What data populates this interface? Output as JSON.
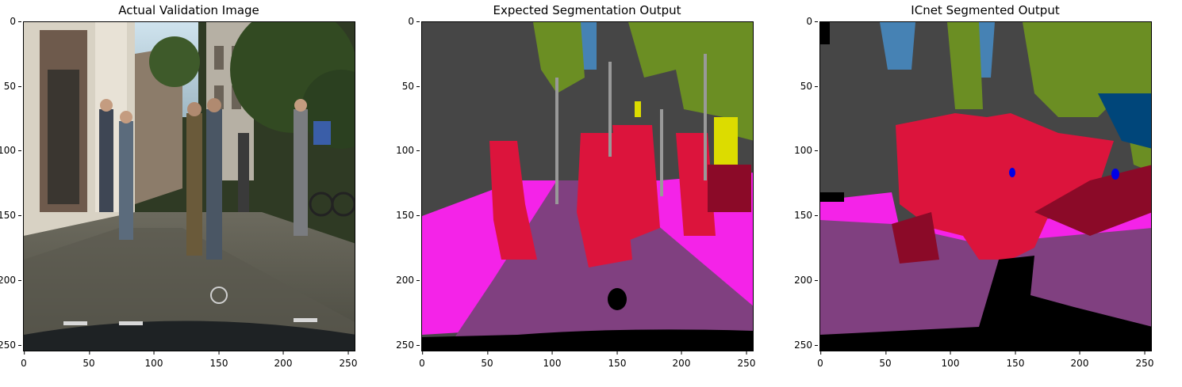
{
  "panels": [
    {
      "title": "Actual Validation Image",
      "yticks": [
        "0",
        "50",
        "100",
        "150",
        "200",
        "250"
      ],
      "xticks": [
        "0",
        "50",
        "100",
        "150",
        "200",
        "250"
      ]
    },
    {
      "title": "Expected Segmentation Output",
      "yticks": [
        "0",
        "50",
        "100",
        "150",
        "200",
        "250"
      ],
      "xticks": [
        "0",
        "50",
        "100",
        "150",
        "200",
        "250"
      ]
    },
    {
      "title": "ICnet Segmented Output",
      "yticks": [
        "0",
        "50",
        "100",
        "150",
        "200",
        "250"
      ],
      "xticks": [
        "0",
        "50",
        "100",
        "150",
        "200",
        "250"
      ]
    }
  ],
  "colors": {
    "road": "#804080",
    "sidewalk": "#f423e8",
    "building": "#464646",
    "vegetation": "#6b8e23",
    "sky": "#4682b4",
    "person": "#dc143c",
    "rider": "#8b0a28",
    "sign": "#dcdc00",
    "pole": "#999999",
    "car_hood": "#000000",
    "truck": "#00467a",
    "bike": "#0000e6"
  }
}
